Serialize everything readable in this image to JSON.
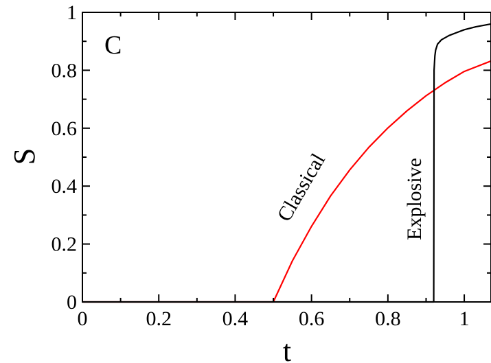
{
  "chart_data": {
    "type": "line",
    "panel_label": "C",
    "xlabel": "t",
    "ylabel": "S",
    "xlim": [
      0,
      1.07
    ],
    "ylim": [
      0,
      1
    ],
    "x_ticks": [
      "0",
      "0.2",
      "0.4",
      "0.6",
      "0.8",
      "1"
    ],
    "y_ticks": [
      "0",
      "0.2",
      "0.4",
      "0.6",
      "0.8",
      "1"
    ],
    "grid": false,
    "series": [
      {
        "label": "Classical",
        "color": "#ff0000",
        "x": [
          0,
          0.5,
          0.55,
          0.6,
          0.65,
          0.7,
          0.75,
          0.8,
          0.85,
          0.9,
          0.95,
          1.0,
          1.07
        ],
        "y": [
          0,
          0,
          0.142,
          0.261,
          0.366,
          0.456,
          0.534,
          0.601,
          0.66,
          0.712,
          0.757,
          0.796,
          0.832
        ]
      },
      {
        "label": "Explosive",
        "color": "#000000",
        "x": [
          0,
          0.92,
          0.921,
          0.923,
          0.925,
          0.93,
          0.94,
          0.96,
          0.98,
          1.0,
          1.03,
          1.07
        ],
        "y": [
          0,
          0,
          0.8,
          0.85,
          0.87,
          0.89,
          0.905,
          0.92,
          0.93,
          0.94,
          0.95,
          0.96
        ]
      }
    ],
    "annotations": [
      "Classical",
      "Explosive"
    ]
  }
}
